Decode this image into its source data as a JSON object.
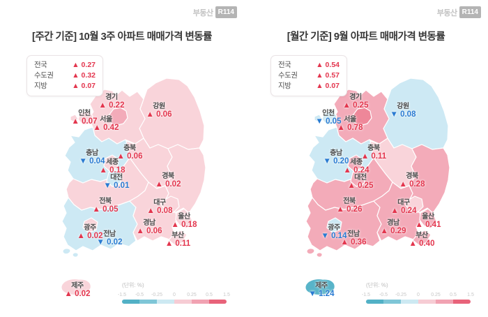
{
  "brand": {
    "name_text": "부동산",
    "logo_text": "R114"
  },
  "glyphs": {
    "up": "▲",
    "down": "▼"
  },
  "colors": {
    "up": "#e3364e",
    "down": "#2a7bd2",
    "pink1": "#f9d4da",
    "pink2": "#f3abb9",
    "pink3": "#ee879a",
    "pink_deep": "#ee8799",
    "blue1": "#cde9f4",
    "teal": "#58b4c9"
  },
  "scale_bar": {
    "unit_label": "(단위: %)",
    "ticks": [
      "-1.5",
      "-0.5",
      "-0.25",
      "0",
      "0.25",
      "0.5",
      "1.5"
    ],
    "segments": [
      "#52b1c6",
      "#7fc6d7",
      "#cde9f2",
      "#f6ccd4",
      "#f1a2b2",
      "#e8637a"
    ]
  },
  "panels": [
    {
      "id": "weekly",
      "title": "[주간 기준] 10월 3주 아파트 매매가격 변동률",
      "summary": [
        {
          "label": "전국",
          "dir": "up",
          "value": "0.27"
        },
        {
          "label": "수도권",
          "dir": "up",
          "value": "0.32"
        },
        {
          "label": "지방",
          "dir": "up",
          "value": "0.07"
        }
      ],
      "regions": [
        {
          "id": "gyeonggi",
          "name": "경기",
          "dir": "up",
          "value": "0.22",
          "tone": "pink1"
        },
        {
          "id": "gangwon",
          "name": "강원",
          "dir": "up",
          "value": "0.06",
          "tone": "pink1"
        },
        {
          "id": "incheon",
          "name": "인천",
          "dir": "up",
          "value": "0.07",
          "tone": "pink1"
        },
        {
          "id": "seoul",
          "name": "서울",
          "dir": "up",
          "value": "0.42",
          "tone": "pink2"
        },
        {
          "id": "chungbuk",
          "name": "충북",
          "dir": "up",
          "value": "0.06",
          "tone": "pink1"
        },
        {
          "id": "chungnam",
          "name": "충남",
          "dir": "down",
          "value": "0.04",
          "tone": "blue1"
        },
        {
          "id": "sejong",
          "name": "세종",
          "dir": "up",
          "value": "0.18",
          "tone": "pink1"
        },
        {
          "id": "daejeon",
          "name": "대전",
          "dir": "down",
          "value": "0.01",
          "tone": "blue1"
        },
        {
          "id": "gyeongbuk",
          "name": "경북",
          "dir": "up",
          "value": "0.02",
          "tone": "pink1"
        },
        {
          "id": "jeonbuk",
          "name": "전북",
          "dir": "up",
          "value": "0.05",
          "tone": "pink1"
        },
        {
          "id": "daegu",
          "name": "대구",
          "dir": "up",
          "value": "0.08",
          "tone": "pink1"
        },
        {
          "id": "gyeongnam",
          "name": "경남",
          "dir": "up",
          "value": "0.06",
          "tone": "pink1"
        },
        {
          "id": "ulsan",
          "name": "울산",
          "dir": "up",
          "value": "0.18",
          "tone": "pink1"
        },
        {
          "id": "busan",
          "name": "부산",
          "dir": "up",
          "value": "0.11",
          "tone": "pink1"
        },
        {
          "id": "gwangju",
          "name": "광주",
          "dir": "up",
          "value": "0.02",
          "tone": "pink1"
        },
        {
          "id": "jeonnam",
          "name": "전남",
          "dir": "down",
          "value": "0.02",
          "tone": "blue1"
        },
        {
          "id": "jeju",
          "name": "제주",
          "dir": "up",
          "value": "0.02",
          "tone": "pink1"
        }
      ]
    },
    {
      "id": "monthly",
      "title": "[월간 기준] 9월 아파트 매매가격 변동률",
      "summary": [
        {
          "label": "전국",
          "dir": "up",
          "value": "0.54"
        },
        {
          "label": "수도권",
          "dir": "up",
          "value": "0.57"
        },
        {
          "label": "지방",
          "dir": "up",
          "value": "0.07"
        }
      ],
      "regions": [
        {
          "id": "gyeonggi",
          "name": "경기",
          "dir": "up",
          "value": "0.25",
          "tone": "pink2"
        },
        {
          "id": "gangwon",
          "name": "강원",
          "dir": "down",
          "value": "0.08",
          "tone": "blue1"
        },
        {
          "id": "incheon",
          "name": "인천",
          "dir": "down",
          "value": "0.05",
          "tone": "blue1"
        },
        {
          "id": "seoul",
          "name": "서울",
          "dir": "up",
          "value": "0.78",
          "tone": "pink_deep"
        },
        {
          "id": "chungbuk",
          "name": "충북",
          "dir": "up",
          "value": "0.11",
          "tone": "pink1"
        },
        {
          "id": "chungnam",
          "name": "충남",
          "dir": "down",
          "value": "0.20",
          "tone": "blue1"
        },
        {
          "id": "sejong",
          "name": "세종",
          "dir": "up",
          "value": "0.24",
          "tone": "pink2"
        },
        {
          "id": "daejeon",
          "name": "대전",
          "dir": "up",
          "value": "0.25",
          "tone": "pink2"
        },
        {
          "id": "gyeongbuk",
          "name": "경북",
          "dir": "up",
          "value": "0.28",
          "tone": "pink2"
        },
        {
          "id": "jeonbuk",
          "name": "전북",
          "dir": "up",
          "value": "0.26",
          "tone": "pink2"
        },
        {
          "id": "daegu",
          "name": "대구",
          "dir": "up",
          "value": "0.24",
          "tone": "pink1"
        },
        {
          "id": "gyeongnam",
          "name": "경남",
          "dir": "up",
          "value": "0.29",
          "tone": "pink2"
        },
        {
          "id": "ulsan",
          "name": "울산",
          "dir": "up",
          "value": "0.41",
          "tone": "pink2"
        },
        {
          "id": "busan",
          "name": "부산",
          "dir": "up",
          "value": "0.40",
          "tone": "pink2"
        },
        {
          "id": "gwangju",
          "name": "광주",
          "dir": "down",
          "value": "0.14",
          "tone": "blue1"
        },
        {
          "id": "jeonnam",
          "name": "전남",
          "dir": "up",
          "value": "0.36",
          "tone": "pink2"
        },
        {
          "id": "jeju",
          "name": "제주",
          "dir": "down",
          "value": "1.24",
          "tone": "teal"
        }
      ]
    }
  ],
  "chart_data": [
    {
      "type": "heatmap",
      "title": "[주간 기준] 10월 3주 아파트 매매가격 변동률",
      "subtitle": "(단위: %)",
      "categories": [
        "전국",
        "수도권",
        "지방",
        "경기",
        "강원",
        "인천",
        "서울",
        "충북",
        "충남",
        "세종",
        "대전",
        "경북",
        "전북",
        "대구",
        "경남",
        "울산",
        "부산",
        "광주",
        "전남",
        "제주"
      ],
      "values": [
        0.27,
        0.32,
        0.07,
        0.22,
        0.06,
        0.07,
        0.42,
        0.06,
        -0.04,
        0.18,
        -0.01,
        0.02,
        0.05,
        0.08,
        0.06,
        0.18,
        0.11,
        0.02,
        -0.02,
        0.02
      ],
      "colorscale_ticks": [
        -1.5,
        -0.5,
        -0.25,
        0,
        0.25,
        0.5,
        1.5
      ],
      "legend_position": "bottom"
    },
    {
      "type": "heatmap",
      "title": "[월간 기준] 9월 아파트 매매가격 변동률",
      "subtitle": "(단위: %)",
      "categories": [
        "전국",
        "수도권",
        "지방",
        "경기",
        "강원",
        "인천",
        "서울",
        "충북",
        "충남",
        "세종",
        "대전",
        "경북",
        "전북",
        "대구",
        "경남",
        "울산",
        "부산",
        "광주",
        "전남",
        "제주"
      ],
      "values": [
        0.54,
        0.57,
        0.07,
        0.25,
        -0.08,
        -0.05,
        0.78,
        0.11,
        -0.2,
        0.24,
        0.25,
        0.28,
        0.26,
        0.24,
        0.29,
        0.41,
        0.4,
        -0.14,
        0.36,
        -1.24
      ],
      "colorscale_ticks": [
        -1.5,
        -0.5,
        -0.25,
        0,
        0.25,
        0.5,
        1.5
      ],
      "legend_position": "bottom"
    }
  ]
}
